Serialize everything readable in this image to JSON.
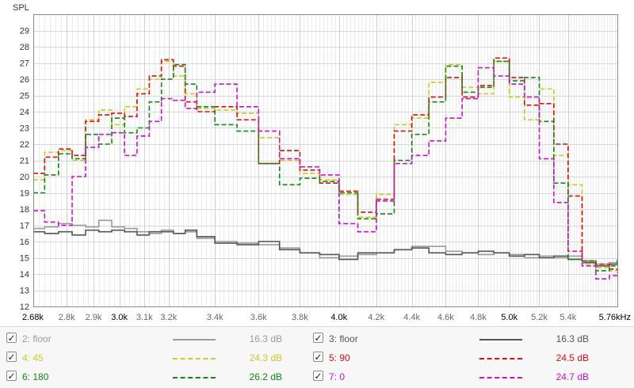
{
  "chart_data": {
    "type": "line",
    "ylabel": "SPL",
    "xunit": "kHz",
    "ylim": [
      12,
      30
    ],
    "xlim": [
      2.68,
      5.76
    ],
    "x_scale": "log",
    "grid": true,
    "ytick_labels": [
      "12",
      "13",
      "14",
      "15",
      "16",
      "17",
      "18",
      "19",
      "20",
      "21",
      "22",
      "23",
      "24",
      "25",
      "26",
      "27",
      "28",
      "29"
    ],
    "xtick_labels": [
      {
        "v": 2.68,
        "t": "2.68k",
        "major": true
      },
      {
        "v": 2.8,
        "t": "2.8k",
        "major": false
      },
      {
        "v": 2.9,
        "t": "2.9k",
        "major": false
      },
      {
        "v": 3.0,
        "t": "3.0k",
        "major": true
      },
      {
        "v": 3.1,
        "t": "3.1k",
        "major": false
      },
      {
        "v": 3.2,
        "t": "3.2k",
        "major": false
      },
      {
        "v": 3.4,
        "t": "3.4k",
        "major": false
      },
      {
        "v": 3.6,
        "t": "3.6k",
        "major": false
      },
      {
        "v": 3.8,
        "t": "3.8k",
        "major": false
      },
      {
        "v": 4.0,
        "t": "4.0k",
        "major": true
      },
      {
        "v": 4.2,
        "t": "4.2k",
        "major": false
      },
      {
        "v": 4.4,
        "t": "4.4k",
        "major": false
      },
      {
        "v": 4.6,
        "t": "4.6k",
        "major": false
      },
      {
        "v": 4.8,
        "t": "4.8k",
        "major": false
      },
      {
        "v": 5.0,
        "t": "5.0k",
        "major": true
      },
      {
        "v": 5.2,
        "t": "5.2k",
        "major": false
      },
      {
        "v": 5.4,
        "t": "5.4k",
        "major": false
      },
      {
        "v": 5.76,
        "t": "5.76kHz",
        "major": true
      }
    ],
    "series": [
      {
        "name": "2: floor",
        "value_label": "16.3 dB",
        "color": "#9b9b9b",
        "dash": "solid",
        "checked": true,
        "x": [
          2.68,
          2.72,
          2.77,
          2.82,
          2.87,
          2.92,
          2.97,
          3.02,
          3.07,
          3.12,
          3.17,
          3.22,
          3.27,
          3.32,
          3.4,
          3.5,
          3.6,
          3.7,
          3.8,
          3.9,
          4.0,
          4.1,
          4.2,
          4.3,
          4.4,
          4.5,
          4.6,
          4.7,
          4.8,
          4.9,
          5.0,
          5.1,
          5.2,
          5.3,
          5.4,
          5.5,
          5.6,
          5.7,
          5.76
        ],
        "y": [
          16.8,
          16.9,
          17.1,
          17.0,
          16.9,
          17.3,
          16.9,
          16.8,
          16.6,
          16.5,
          16.7,
          16.5,
          16.6,
          16.2,
          16.0,
          15.9,
          15.8,
          15.6,
          15.3,
          15.0,
          15.1,
          15.2,
          15.3,
          15.5,
          15.7,
          15.7,
          15.4,
          15.3,
          15.2,
          15.3,
          15.2,
          15.0,
          15.1,
          15.0,
          15.1,
          14.8,
          14.6,
          14.7,
          14.8
        ]
      },
      {
        "name": "3: floor",
        "value_label": "16.3 dB",
        "color": "#555555",
        "dash": "solid",
        "checked": true,
        "x": [
          2.68,
          2.72,
          2.77,
          2.82,
          2.87,
          2.92,
          2.97,
          3.02,
          3.07,
          3.12,
          3.17,
          3.22,
          3.27,
          3.32,
          3.4,
          3.5,
          3.6,
          3.7,
          3.8,
          3.9,
          4.0,
          4.1,
          4.2,
          4.3,
          4.4,
          4.5,
          4.6,
          4.7,
          4.8,
          4.9,
          5.0,
          5.1,
          5.2,
          5.3,
          5.4,
          5.5,
          5.6,
          5.7,
          5.76
        ],
        "y": [
          16.6,
          16.5,
          16.6,
          16.4,
          16.7,
          16.6,
          16.7,
          16.6,
          16.4,
          16.6,
          16.6,
          16.5,
          16.7,
          16.3,
          15.9,
          15.8,
          16.0,
          15.5,
          15.3,
          15.2,
          14.9,
          15.3,
          15.3,
          15.5,
          15.6,
          15.3,
          15.2,
          15.3,
          15.4,
          15.3,
          15.1,
          15.2,
          15.0,
          15.1,
          14.9,
          14.7,
          14.5,
          14.6,
          14.9
        ]
      },
      {
        "name": "4: 45",
        "value_label": "24.3 dB",
        "color": "#cccc22",
        "dash": "dash",
        "checked": true,
        "x": [
          2.68,
          2.72,
          2.77,
          2.82,
          2.87,
          2.92,
          2.97,
          3.02,
          3.07,
          3.12,
          3.17,
          3.22,
          3.27,
          3.32,
          3.4,
          3.5,
          3.6,
          3.7,
          3.8,
          3.9,
          4.0,
          4.1,
          4.2,
          4.3,
          4.4,
          4.5,
          4.6,
          4.7,
          4.8,
          4.9,
          5.0,
          5.1,
          5.2,
          5.3,
          5.4,
          5.5,
          5.6,
          5.7,
          5.76
        ],
        "y": [
          19.8,
          21.5,
          21.6,
          21.0,
          23.5,
          24.1,
          23.2,
          24.3,
          25.4,
          26.0,
          27.1,
          26.2,
          25.1,
          24.2,
          24.1,
          23.9,
          22.4,
          21.0,
          20.2,
          19.8,
          18.9,
          17.5,
          18.9,
          23.2,
          23.6,
          25.8,
          26.9,
          25.5,
          25.1,
          27.1,
          24.9,
          23.5,
          25.4,
          21.3,
          19.5,
          14.6,
          14.4,
          14.2,
          14.6
        ]
      },
      {
        "name": "5: 90",
        "value_label": "24.5 dB",
        "color": "#dd1111",
        "dash": "dash",
        "checked": true,
        "x": [
          2.68,
          2.72,
          2.77,
          2.82,
          2.87,
          2.92,
          2.97,
          3.02,
          3.07,
          3.12,
          3.17,
          3.22,
          3.27,
          3.32,
          3.4,
          3.5,
          3.6,
          3.7,
          3.8,
          3.9,
          4.0,
          4.1,
          4.2,
          4.3,
          4.4,
          4.5,
          4.6,
          4.7,
          4.8,
          4.9,
          5.0,
          5.1,
          5.2,
          5.3,
          5.4,
          5.5,
          5.6,
          5.7,
          5.76
        ],
        "y": [
          20.2,
          21.2,
          21.7,
          21.3,
          23.4,
          23.8,
          23.9,
          23.7,
          25.1,
          26.2,
          27.2,
          26.8,
          24.6,
          24.0,
          24.3,
          23.5,
          20.8,
          21.6,
          20.4,
          19.6,
          19.1,
          17.8,
          18.6,
          22.8,
          23.8,
          24.9,
          26.1,
          24.9,
          25.6,
          27.3,
          26.1,
          24.4,
          24.5,
          22.0,
          18.8,
          14.8,
          14.6,
          14.3,
          14.2
        ]
      },
      {
        "name": "6: 180",
        "value_label": "26.2 dB",
        "color": "#118811",
        "dash": "dash",
        "checked": true,
        "x": [
          2.68,
          2.72,
          2.77,
          2.82,
          2.87,
          2.92,
          2.97,
          3.02,
          3.07,
          3.12,
          3.17,
          3.22,
          3.27,
          3.32,
          3.4,
          3.5,
          3.6,
          3.7,
          3.8,
          3.9,
          4.0,
          4.1,
          4.2,
          4.3,
          4.4,
          4.5,
          4.6,
          4.7,
          4.8,
          4.9,
          5.0,
          5.1,
          5.2,
          5.3,
          5.4,
          5.5,
          5.6,
          5.7,
          5.76
        ],
        "y": [
          19.0,
          20.1,
          21.4,
          21.1,
          22.6,
          22.0,
          23.6,
          22.7,
          23.0,
          24.6,
          26.0,
          26.9,
          25.7,
          24.3,
          23.2,
          22.8,
          20.8,
          19.5,
          19.9,
          19.7,
          19.0,
          17.4,
          17.7,
          21.0,
          22.6,
          24.6,
          26.8,
          25.2,
          25.5,
          27.1,
          25.9,
          26.1,
          23.4,
          19.6,
          14.9,
          14.8,
          14.2,
          14.5,
          14.8
        ]
      },
      {
        "name": "7: 0",
        "value_label": "24.7 dB",
        "color": "#cc11cc",
        "dash": "dash",
        "checked": true,
        "x": [
          2.68,
          2.72,
          2.77,
          2.82,
          2.87,
          2.92,
          2.97,
          3.02,
          3.07,
          3.12,
          3.17,
          3.22,
          3.27,
          3.32,
          3.4,
          3.5,
          3.6,
          3.7,
          3.8,
          3.9,
          4.0,
          4.1,
          4.2,
          4.3,
          4.4,
          4.5,
          4.6,
          4.7,
          4.8,
          4.9,
          5.0,
          5.1,
          5.2,
          5.3,
          5.4,
          5.5,
          5.6,
          5.7,
          5.76
        ],
        "y": [
          17.9,
          17.2,
          17.0,
          20.0,
          21.8,
          22.6,
          22.7,
          21.3,
          22.5,
          23.4,
          24.8,
          24.7,
          24.2,
          25.2,
          25.7,
          24.3,
          22.8,
          21.1,
          20.6,
          20.1,
          17.1,
          16.6,
          18.5,
          20.8,
          21.3,
          22.2,
          23.6,
          24.8,
          26.7,
          26.2,
          25.7,
          24.9,
          21.1,
          18.4,
          15.4,
          14.5,
          13.7,
          13.9,
          14.1
        ]
      }
    ]
  }
}
